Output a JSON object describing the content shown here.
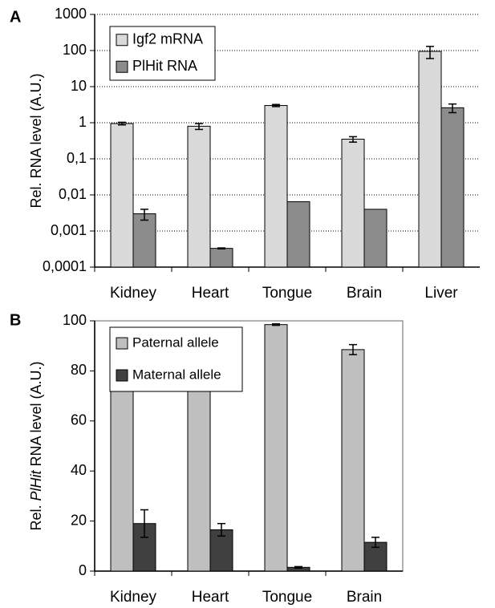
{
  "chart_data": [
    {
      "type": "bar",
      "panel_label": "A",
      "y_label": [
        "Rel. RNA level (A.U.)"
      ],
      "categories": [
        "Kidney",
        "Heart",
        "Tongue",
        "Brain",
        "Liver"
      ],
      "series": [
        {
          "name": "Igf2 mRNA",
          "color": "#d9d9d9",
          "values": [
            0.95,
            0.8,
            3.0,
            0.35,
            95
          ],
          "errors": [
            0.08,
            0.15,
            0.2,
            0.06,
            35
          ]
        },
        {
          "name": "PlHit RNA",
          "color": "#8c8c8c",
          "values": [
            0.003,
            0.00033,
            0.0065,
            0.004,
            2.6
          ],
          "errors": [
            0.001,
            1e-05,
            null,
            null,
            0.7
          ]
        }
      ],
      "log_scale": true,
      "grid": true,
      "frame": false,
      "ylim": [
        0.0001,
        1000
      ],
      "yticks": [
        {
          "value": 0.0001,
          "label": "0,0001"
        },
        {
          "value": 0.001,
          "label": "0,001"
        },
        {
          "value": 0.01,
          "label": "0,01"
        },
        {
          "value": 0.1,
          "label": "0,1"
        },
        1,
        10,
        100,
        1000
      ]
    },
    {
      "type": "bar",
      "panel_label": "B",
      "y_label": [
        "Rel.",
        "PlHit",
        "RNA level (A.U.)"
      ],
      "categories": [
        "Kidney",
        "Heart",
        "Tongue",
        "Brain"
      ],
      "series": [
        {
          "name": "Paternal allele",
          "color": "#bfbfbf",
          "values": [
            81,
            84,
            98.5,
            88.5
          ],
          "errors": [
            5.5,
            2.5,
            0.3,
            2
          ]
        },
        {
          "name": "Maternal allele",
          "color": "#404040",
          "values": [
            19,
            16.5,
            1.5,
            11.5
          ],
          "errors": [
            5.5,
            2.5,
            0.3,
            2
          ]
        }
      ],
      "log_scale": false,
      "grid": false,
      "frame": true,
      "ylim": [
        0,
        100
      ],
      "yticks": [
        0,
        20,
        40,
        60,
        80,
        100
      ]
    }
  ]
}
